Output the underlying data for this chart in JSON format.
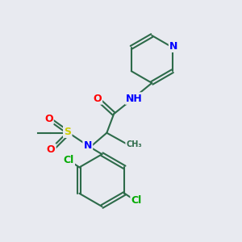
{
  "background_color": "#e8eaf0",
  "bond_color": "#2d6b4a",
  "atom_colors": {
    "N": "#0000ff",
    "O": "#ff0000",
    "S": "#cccc00",
    "Cl": "#00aa00",
    "H": "#333333",
    "C": "#2d6b4a"
  },
  "title": "",
  "figsize": [
    3.0,
    3.0
  ],
  "dpi": 100
}
